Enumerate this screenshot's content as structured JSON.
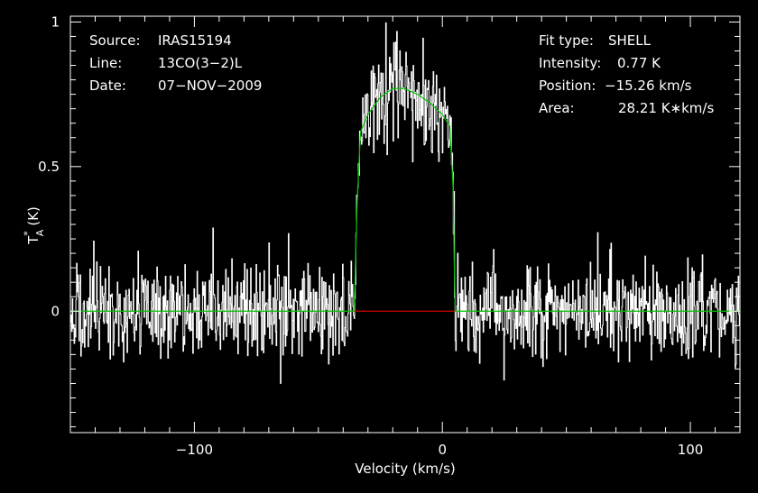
{
  "chart_data": {
    "type": "line",
    "xlabel": "Velocity (km/s)",
    "ylabel": "T",
    "ylabel_sup": "*",
    "ylabel_sub": "A",
    "ylabel_unit": "(K)",
    "xlim": [
      -150,
      120
    ],
    "ylim": [
      -0.42,
      1.02
    ],
    "x_ticks": [
      -100,
      0,
      100
    ],
    "x_tick_labels": [
      "−100",
      "0",
      "100"
    ],
    "y_ticks": [
      0,
      0.5,
      1
    ],
    "y_tick_labels": [
      "0",
      "0.5",
      "1"
    ],
    "info_left": [
      {
        "label": "Source:",
        "value": "IRAS15194"
      },
      {
        "label": "Line:",
        "value": "13CO(3−2)L"
      },
      {
        "label": "Date:",
        "value": "07−NOV−2009"
      }
    ],
    "info_right": [
      {
        "label": "Fit type:",
        "value": "SHELL"
      },
      {
        "label": "Intensity:",
        "value": "0.77 K"
      },
      {
        "label": "Position:",
        "value": "−15.26 km/s"
      },
      {
        "label": "Area:",
        "value": "28.21 K∗km/s"
      }
    ],
    "fit": {
      "type": "SHELL",
      "intensity_K": 0.77,
      "position_kms": -15.26,
      "area_Kkms": 28.21,
      "v_min": -35.5,
      "v_max": 5.0,
      "plateau_x": [
        -35.5,
        -34.5,
        -33,
        -30,
        -25,
        -20,
        -15.3,
        -10,
        -5,
        0,
        3,
        4.5,
        5.0
      ],
      "plateau_y": [
        0.0,
        0.35,
        0.62,
        0.68,
        0.74,
        0.77,
        0.77,
        0.75,
        0.72,
        0.68,
        0.64,
        0.4,
        0.0
      ]
    },
    "baseline": {
      "x": [
        -35.5,
        5.0
      ],
      "y": [
        0,
        0
      ]
    },
    "noise_rms_K": 0.08,
    "series_colors": {
      "data": "#ffffff",
      "fit": "#00c000",
      "baseline": "#d00000"
    },
    "grid": false
  }
}
